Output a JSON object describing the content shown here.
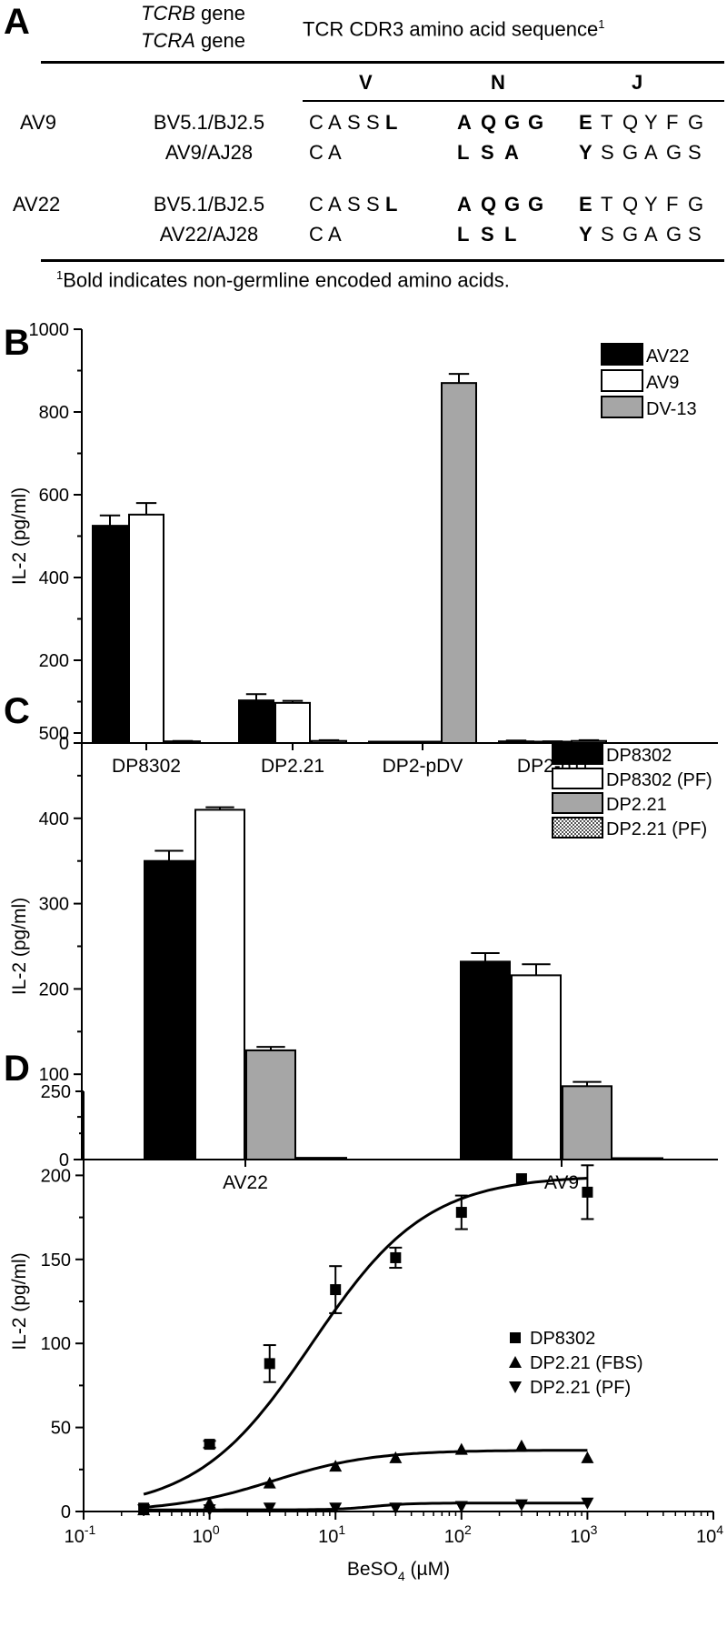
{
  "panel_A": {
    "letter": "A",
    "header": {
      "tcrb_gene_italic": "TCRB",
      "tcrb_gene_suffix": " gene",
      "tcra_gene_italic": "TCRA",
      "tcra_gene_suffix": " gene",
      "cdr3_title": "TCR CDR3 amino acid sequence",
      "cdr3_superscript": "1",
      "col_v": "V",
      "col_n": "N",
      "col_j": "J"
    },
    "rows": [
      {
        "clone": "AV9",
        "gene": "BV5.1/BJ2.5",
        "v": [
          [
            "C",
            0
          ],
          [
            "A",
            0
          ],
          [
            "S",
            0
          ],
          [
            "S",
            0
          ],
          [
            "L",
            1
          ]
        ],
        "n": [
          [
            "A",
            1
          ],
          [
            "Q",
            1
          ],
          [
            "G",
            1
          ],
          [
            "G",
            1
          ]
        ],
        "j": [
          [
            "E",
            1
          ],
          [
            "T",
            0
          ],
          [
            "Q",
            0
          ],
          [
            "Y",
            0
          ],
          [
            "F",
            0
          ],
          [
            "G",
            0
          ]
        ]
      },
      {
        "clone": "",
        "gene": "AV9/AJ28",
        "v": [
          [
            "C",
            0
          ],
          [
            "A",
            0
          ]
        ],
        "n": [
          [
            "L",
            1
          ],
          [
            "S",
            1
          ],
          [
            "A",
            1
          ]
        ],
        "j": [
          [
            "Y",
            1
          ],
          [
            "S",
            0
          ],
          [
            "G",
            0
          ],
          [
            "A",
            0
          ],
          [
            "G",
            0
          ],
          [
            "S",
            0
          ]
        ]
      },
      {
        "clone": "AV22",
        "gene": "BV5.1/BJ2.5",
        "v": [
          [
            "C",
            0
          ],
          [
            "A",
            0
          ],
          [
            "S",
            0
          ],
          [
            "S",
            0
          ],
          [
            "L",
            1
          ]
        ],
        "n": [
          [
            "A",
            1
          ],
          [
            "Q",
            1
          ],
          [
            "G",
            1
          ],
          [
            "G",
            1
          ]
        ],
        "j": [
          [
            "E",
            1
          ],
          [
            "T",
            0
          ],
          [
            "Q",
            0
          ],
          [
            "Y",
            0
          ],
          [
            "F",
            0
          ],
          [
            "G",
            0
          ]
        ]
      },
      {
        "clone": "",
        "gene": "AV22/AJ28",
        "v": [
          [
            "C",
            0
          ],
          [
            "A",
            0
          ]
        ],
        "n": [
          [
            "L",
            1
          ],
          [
            "S",
            1
          ],
          [
            "L",
            1
          ]
        ],
        "j": [
          [
            "Y",
            1
          ],
          [
            "S",
            0
          ],
          [
            "G",
            0
          ],
          [
            "A",
            0
          ],
          [
            "G",
            0
          ],
          [
            "S",
            0
          ]
        ]
      }
    ],
    "footnote_superscript": "1",
    "footnote": "Bold indicates non-germline encoded amino acids."
  },
  "chart_data": [
    {
      "panel": "B",
      "type": "bar",
      "ylabel": "IL-2 (pg/ml)",
      "ylim": [
        0,
        1000
      ],
      "yticks": [
        0,
        200,
        400,
        600,
        800,
        1000
      ],
      "categories": [
        "DP8302",
        "DP2.21",
        "DP2-pDV",
        "DP2-pTf"
      ],
      "series": [
        {
          "name": "AV22",
          "color": "#000000",
          "values": [
            525,
            103,
            2,
            4
          ],
          "errors": [
            25,
            15,
            0,
            2
          ]
        },
        {
          "name": "AV9",
          "color": "#ffffff",
          "values": [
            552,
            97,
            0,
            3
          ],
          "errors": [
            28,
            5,
            0,
            1
          ]
        },
        {
          "name": "DV-13",
          "color": "#a6a6a6",
          "values": [
            4,
            5,
            870,
            5
          ],
          "errors": [
            1,
            2,
            22,
            2
          ]
        }
      ],
      "legend": "top-right"
    },
    {
      "panel": "C",
      "type": "bar",
      "ylabel": "IL-2 (pg/ml)",
      "ylim": [
        0,
        500
      ],
      "yticks": [
        0,
        100,
        200,
        300,
        400,
        500
      ],
      "categories": [
        "AV22",
        "AV9"
      ],
      "series": [
        {
          "name": "DP8302",
          "color": "#000000",
          "values": [
            350,
            232
          ],
          "errors": [
            12,
            10
          ]
        },
        {
          "name": "DP8302 (PF)",
          "color": "#ffffff",
          "values": [
            410,
            216
          ],
          "errors": [
            3,
            13
          ]
        },
        {
          "name": "DP2.21",
          "color": "#a6a6a6",
          "values": [
            128,
            86
          ],
          "errors": [
            4,
            5
          ]
        },
        {
          "name": "DP2.21 (PF)",
          "color": "checker",
          "values": [
            2,
            1
          ],
          "errors": [
            0,
            0
          ]
        }
      ],
      "legend": "top-right"
    },
    {
      "panel": "D",
      "type": "scatter",
      "xscale": "log",
      "xlabel_main": "BeSO",
      "xlabel_sub": "4",
      "xlabel_unit": " (µM)",
      "ylabel": "IL-2 (pg/ml)",
      "xlim": [
        0.1,
        10000
      ],
      "ylim": [
        0,
        250
      ],
      "yticks": [
        0,
        50,
        100,
        150,
        200,
        250
      ],
      "xtick_exponents": [
        "-1",
        "0",
        "1",
        "2",
        "3",
        "4"
      ],
      "xtick_base": "10",
      "series": [
        {
          "name": "DP8302",
          "marker": "square",
          "x": [
            0.3,
            1,
            3,
            10,
            30,
            100,
            300,
            1000
          ],
          "y": [
            2,
            40,
            88,
            132,
            151,
            178,
            198,
            190
          ],
          "errors": [
            0,
            2,
            11,
            14,
            6,
            10,
            0,
            16
          ]
        },
        {
          "name": "DP2.21 (FBS)",
          "marker": "triangle-up",
          "x": [
            0.3,
            1,
            3,
            10,
            30,
            100,
            300,
            1000
          ],
          "y": [
            1,
            5,
            17,
            27,
            32,
            37,
            39,
            32
          ],
          "errors": [
            0,
            0,
            0,
            0,
            0,
            0,
            0,
            0
          ]
        },
        {
          "name": "DP2.21 (PF)",
          "marker": "triangle-down",
          "x": [
            0.3,
            1,
            3,
            10,
            30,
            100,
            300,
            1000
          ],
          "y": [
            1,
            1,
            2,
            2,
            2,
            3,
            4,
            5
          ],
          "errors": [
            0,
            0,
            0,
            0,
            0,
            0,
            0,
            0
          ]
        }
      ],
      "fits": [
        {
          "series": "DP8302",
          "bottom": 0,
          "top": 200,
          "ec50": 6.5,
          "hill": 0.95
        },
        {
          "series": "DP2.21 (FBS)",
          "bottom": 0,
          "top": 36.5,
          "ec50": 3.2,
          "hill": 1.1
        },
        {
          "series": "DP2.21 (PF)",
          "bottom": 1,
          "top": 5,
          "ec50": 20,
          "hill": 3
        }
      ],
      "legend": "right"
    }
  ]
}
